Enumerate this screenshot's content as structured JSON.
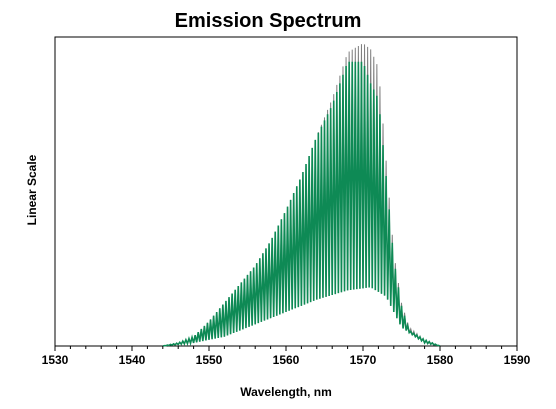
{
  "chart_data": {
    "type": "line",
    "title": "Emission Spectrum",
    "xlabel": "Wavelength, nm",
    "ylabel": "Linear Scale",
    "xlim": [
      1530,
      1590
    ],
    "ylim": [
      0,
      1
    ],
    "x_ticks": [
      "1530",
      "1540",
      "1550",
      "1560",
      "1570",
      "1580",
      "1590"
    ],
    "x_minor_step": 2,
    "y_ticks_visible": false,
    "grid": false,
    "legend": "none",
    "comb_spacing_nm": 0.4,
    "series": [
      {
        "color": "#7f7f7f",
        "peak_envelope": [
          [
            1544,
            0
          ],
          [
            1546,
            0.01
          ],
          [
            1548,
            0.03
          ],
          [
            1550,
            0.08
          ],
          [
            1552,
            0.14
          ],
          [
            1554,
            0.2
          ],
          [
            1556,
            0.26
          ],
          [
            1558,
            0.34
          ],
          [
            1560,
            0.44
          ],
          [
            1562,
            0.55
          ],
          [
            1564,
            0.68
          ],
          [
            1566,
            0.8
          ],
          [
            1568,
            0.95
          ],
          [
            1570,
            0.98
          ],
          [
            1571,
            0.96
          ],
          [
            1572,
            0.9
          ],
          [
            1573,
            0.6
          ],
          [
            1574,
            0.3
          ],
          [
            1575,
            0.14
          ],
          [
            1576,
            0.06
          ],
          [
            1578,
            0.02
          ],
          [
            1580,
            0
          ]
        ],
        "valley_envelope": [
          [
            1544,
            0
          ],
          [
            1548,
            0.01
          ],
          [
            1552,
            0.03
          ],
          [
            1556,
            0.07
          ],
          [
            1560,
            0.11
          ],
          [
            1564,
            0.15
          ],
          [
            1568,
            0.18
          ],
          [
            1571,
            0.19
          ],
          [
            1573,
            0.16
          ],
          [
            1575,
            0.06
          ],
          [
            1578,
            0.01
          ],
          [
            1580,
            0
          ]
        ]
      },
      {
        "color": "#0e8a55",
        "peak_envelope": [
          [
            1544,
            0
          ],
          [
            1546,
            0.01
          ],
          [
            1548,
            0.03
          ],
          [
            1550,
            0.08
          ],
          [
            1552,
            0.14
          ],
          [
            1554,
            0.2
          ],
          [
            1556,
            0.26
          ],
          [
            1558,
            0.34
          ],
          [
            1560,
            0.44
          ],
          [
            1562,
            0.55
          ],
          [
            1564,
            0.68
          ],
          [
            1566,
            0.78
          ],
          [
            1568,
            0.92
          ],
          [
            1570,
            0.92
          ],
          [
            1571,
            0.85
          ],
          [
            1572,
            0.8
          ],
          [
            1573,
            0.55
          ],
          [
            1574,
            0.28
          ],
          [
            1575,
            0.13
          ],
          [
            1576,
            0.05
          ],
          [
            1578,
            0.02
          ],
          [
            1580,
            0
          ]
        ],
        "valley_envelope": [
          [
            1544,
            0
          ],
          [
            1548,
            0.01
          ],
          [
            1552,
            0.03
          ],
          [
            1556,
            0.07
          ],
          [
            1560,
            0.11
          ],
          [
            1564,
            0.15
          ],
          [
            1568,
            0.18
          ],
          [
            1571,
            0.19
          ],
          [
            1573,
            0.16
          ],
          [
            1575,
            0.06
          ],
          [
            1578,
            0.01
          ],
          [
            1580,
            0
          ]
        ]
      }
    ]
  }
}
